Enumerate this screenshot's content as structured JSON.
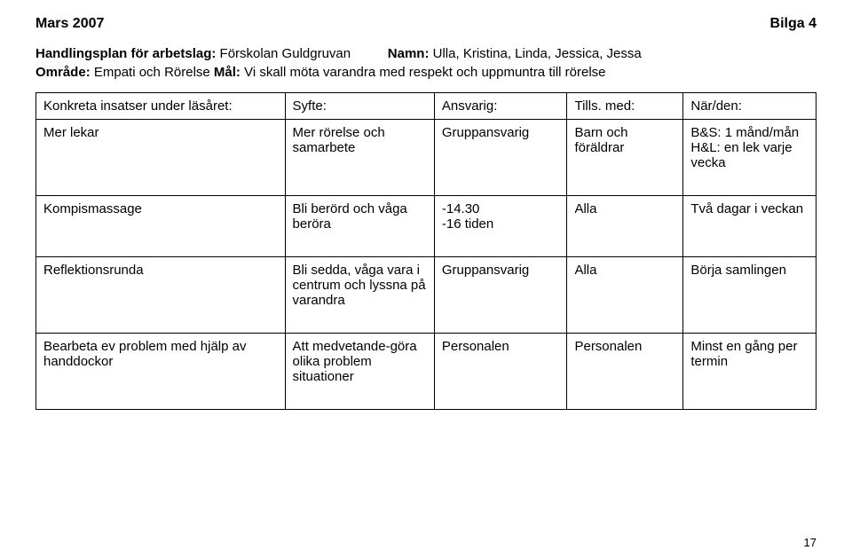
{
  "header": {
    "left": "Mars 2007",
    "right": "Bilga 4"
  },
  "intro": {
    "plan_label": "Handlingsplan för arbetslag: ",
    "plan_value": "Förskolan Guldgruvan",
    "name_label": "Namn: ",
    "name_value": "Ulla, Kristina, Linda, Jessica, Jessa",
    "area_label": "Område: ",
    "area_value": "Empati och Rörelse   ",
    "goal_label": "Mål: ",
    "goal_value": "Vi skall möta varandra med respekt och uppmuntra till rörelse"
  },
  "table": {
    "head": {
      "c1": "Konkreta insatser under läsåret:",
      "c2": "Syfte:",
      "c3": "Ansvarig:",
      "c4": "Tills. med:",
      "c5": "När/den:"
    },
    "rows": [
      {
        "c1": "Mer lekar",
        "c2": "Mer rörelse och samarbete",
        "c3": "Gruppansvarig",
        "c4": "Barn och föräldrar",
        "c5": "B&S: 1 månd/mån H&L: en lek varje vecka"
      },
      {
        "c1": "Kompismassage",
        "c2": "Bli berörd och våga beröra",
        "c3": "-14.30\n-16 tiden",
        "c4": "Alla",
        "c5": "Två dagar i veckan"
      },
      {
        "c1": "Reflektionsrunda",
        "c2": "Bli sedda, våga vara i centrum och lyssna på varandra",
        "c3": "Gruppansvarig",
        "c4": "Alla",
        "c5": "Börja samlingen"
      },
      {
        "c1": "Bearbeta ev problem med hjälp av handdockor",
        "c2": "Att medvetande-göra olika problem situationer",
        "c3": "Personalen",
        "c4": "Personalen",
        "c5": "Minst en gång per termin"
      }
    ]
  },
  "pagenum": "17"
}
